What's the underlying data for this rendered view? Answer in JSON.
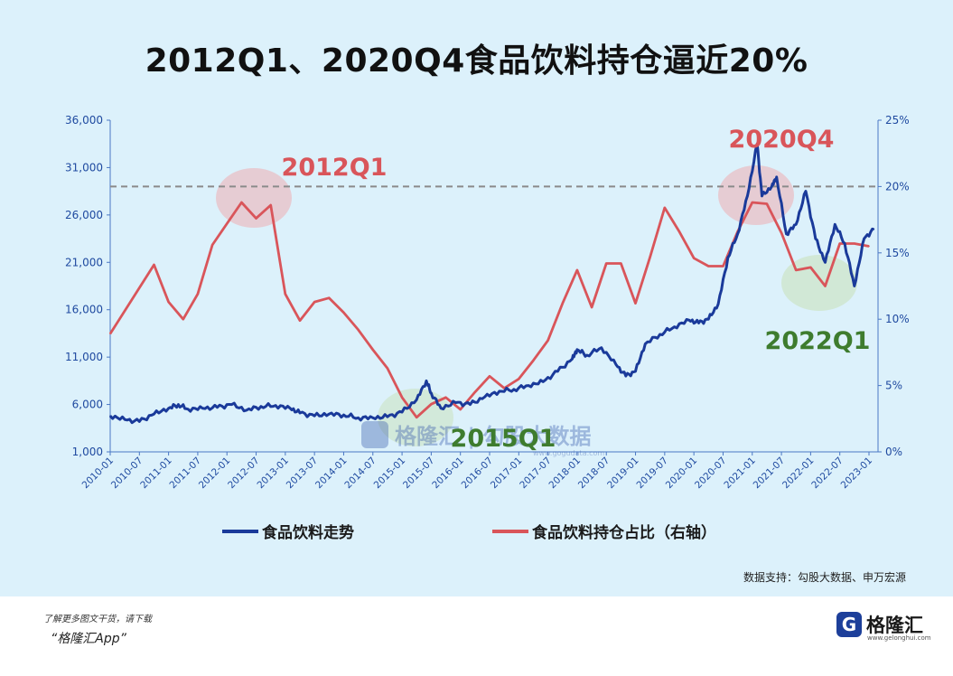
{
  "header": {
    "title": "2012Q1、2020Q4食品饮料持仓逼近20%"
  },
  "chart_data": {
    "type": "line",
    "title": "2012Q1、2020Q4食品饮料持仓逼近20%",
    "x_tick_labels": [
      "2010-01",
      "2010-07",
      "2011-01",
      "2011-07",
      "2012-01",
      "2012-07",
      "2013-01",
      "2013-07",
      "2014-01",
      "2014-07",
      "2015-01",
      "2015-07",
      "2016-01",
      "2016-07",
      "2017-01",
      "2017-07",
      "2018-01",
      "2018-07",
      "2019-01",
      "2019-07",
      "2020-01",
      "2020-07",
      "2021-01",
      "2021-07",
      "2022-01",
      "2022-07",
      "2023-01"
    ],
    "y_left": {
      "ticks": [
        "1,000",
        "6,000",
        "11,000",
        "16,000",
        "21,000",
        "26,000",
        "31,000",
        "36,000"
      ],
      "range": [
        1000,
        36000
      ]
    },
    "y_right": {
      "ticks": [
        "0%",
        "5%",
        "10%",
        "15%",
        "20%",
        "25%"
      ],
      "range": [
        0,
        25
      ]
    },
    "grid": false,
    "reference_line": {
      "axis": "right",
      "value": 20,
      "style": "dashed"
    },
    "series": [
      {
        "name": "食品饮料走势",
        "axis": "left",
        "color": "#1a3a9a",
        "points": [
          [
            "2010-01",
            4800
          ],
          [
            "2010-04",
            4400
          ],
          [
            "2010-07",
            4200
          ],
          [
            "2010-10",
            5000
          ],
          [
            "2011-01",
            5600
          ],
          [
            "2011-03",
            6000
          ],
          [
            "2011-05",
            5500
          ],
          [
            "2011-08",
            5600
          ],
          [
            "2011-11",
            5700
          ],
          [
            "2012-02",
            6000
          ],
          [
            "2012-05",
            5400
          ],
          [
            "2012-08",
            5800
          ],
          [
            "2012-11",
            5900
          ],
          [
            "2013-02",
            5600
          ],
          [
            "2013-04",
            5100
          ],
          [
            "2013-07",
            4800
          ],
          [
            "2013-10",
            5000
          ],
          [
            "2014-01",
            4900
          ],
          [
            "2014-04",
            4600
          ],
          [
            "2014-07",
            4600
          ],
          [
            "2014-10",
            4700
          ],
          [
            "2015-01",
            5200
          ],
          [
            "2015-04",
            6500
          ],
          [
            "2015-06",
            8500
          ],
          [
            "2015-07",
            7200
          ],
          [
            "2015-09",
            5600
          ],
          [
            "2015-12",
            6200
          ],
          [
            "2016-03",
            6000
          ],
          [
            "2016-06",
            6800
          ],
          [
            "2016-09",
            7400
          ],
          [
            "2016-12",
            7600
          ],
          [
            "2017-03",
            8000
          ],
          [
            "2017-06",
            8400
          ],
          [
            "2017-09",
            9500
          ],
          [
            "2017-12",
            10800
          ],
          [
            "2018-01",
            11800
          ],
          [
            "2018-03",
            11200
          ],
          [
            "2018-06",
            12000
          ],
          [
            "2018-09",
            10200
          ],
          [
            "2018-11",
            9000
          ],
          [
            "2019-01",
            9500
          ],
          [
            "2019-03",
            12400
          ],
          [
            "2019-06",
            13400
          ],
          [
            "2019-09",
            14200
          ],
          [
            "2019-12",
            14900
          ],
          [
            "2020-02",
            14600
          ],
          [
            "2020-04",
            15000
          ],
          [
            "2020-06",
            16600
          ],
          [
            "2020-08",
            21500
          ],
          [
            "2020-10",
            24000
          ],
          [
            "2020-12",
            28000
          ],
          [
            "2021-02",
            33500
          ],
          [
            "2021-03",
            28000
          ],
          [
            "2021-05",
            29000
          ],
          [
            "2021-06",
            30000
          ],
          [
            "2021-08",
            24000
          ],
          [
            "2021-10",
            25000
          ],
          [
            "2021-12",
            28500
          ],
          [
            "2022-02",
            23500
          ],
          [
            "2022-04",
            21000
          ],
          [
            "2022-06",
            25000
          ],
          [
            "2022-08",
            23000
          ],
          [
            "2022-10",
            18500
          ],
          [
            "2022-12",
            23500
          ],
          [
            "2023-02",
            24500
          ]
        ]
      },
      {
        "name": "食品饮料持仓占比（右轴）",
        "axis": "right",
        "color": "#d9555a",
        "points": [
          [
            "2010-01",
            8.9
          ],
          [
            "2010-10",
            14.1
          ],
          [
            "2011-01",
            11.3
          ],
          [
            "2011-04",
            10.0
          ],
          [
            "2011-07",
            11.9
          ],
          [
            "2011-10",
            15.6
          ],
          [
            "2012-01",
            17.2
          ],
          [
            "2012-04",
            18.8
          ],
          [
            "2012-07",
            17.6
          ],
          [
            "2012-10",
            18.6
          ],
          [
            "2013-01",
            11.9
          ],
          [
            "2013-04",
            9.9
          ],
          [
            "2013-07",
            11.3
          ],
          [
            "2013-10",
            11.6
          ],
          [
            "2014-01",
            10.5
          ],
          [
            "2014-04",
            9.2
          ],
          [
            "2014-07",
            7.7
          ],
          [
            "2014-10",
            6.3
          ],
          [
            "2015-01",
            4.1
          ],
          [
            "2015-04",
            2.6
          ],
          [
            "2015-07",
            3.6
          ],
          [
            "2015-10",
            4.1
          ],
          [
            "2016-01",
            3.2
          ],
          [
            "2016-04",
            4.5
          ],
          [
            "2016-07",
            5.7
          ],
          [
            "2016-10",
            4.8
          ],
          [
            "2017-01",
            5.5
          ],
          [
            "2017-04",
            6.9
          ],
          [
            "2017-07",
            8.4
          ],
          [
            "2017-10",
            11.2
          ],
          [
            "2018-01",
            13.7
          ],
          [
            "2018-04",
            10.9
          ],
          [
            "2018-07",
            14.2
          ],
          [
            "2018-10",
            14.2
          ],
          [
            "2019-01",
            11.2
          ],
          [
            "2019-04",
            14.7
          ],
          [
            "2019-07",
            18.4
          ],
          [
            "2019-10",
            16.6
          ],
          [
            "2020-01",
            14.6
          ],
          [
            "2020-04",
            14.0
          ],
          [
            "2020-07",
            14.0
          ],
          [
            "2020-10",
            16.6
          ],
          [
            "2021-01",
            18.8
          ],
          [
            "2021-04",
            18.7
          ],
          [
            "2021-07",
            16.5
          ],
          [
            "2021-10",
            13.7
          ],
          [
            "2022-01",
            13.9
          ],
          [
            "2022-04",
            12.5
          ],
          [
            "2022-07",
            15.7
          ],
          [
            "2022-10",
            15.7
          ],
          [
            "2023-01",
            15.5
          ]
        ]
      }
    ],
    "annotations": [
      {
        "text": "2012Q1",
        "color": "#d9555a"
      },
      {
        "text": "2020Q4",
        "color": "#d9555a"
      },
      {
        "text": "2015Q1",
        "color": "#3e7c2e"
      },
      {
        "text": "2022Q1",
        "color": "#3e7c2e"
      }
    ]
  },
  "legend": [
    {
      "label": "食品饮料走势",
      "color": "#1a3a9a"
    },
    {
      "label": "食品饮料持仓占比（右轴）",
      "color": "#d9555a"
    }
  ],
  "watermark": {
    "text": "格隆汇 | 勾股大数据",
    "url": "www.gogudata.com"
  },
  "footer": {
    "source": "数据支持：勾股大数据、申万宏源",
    "promo_line1": "了解更多图文干货，请下载",
    "promo_line2": "“格隆汇App”",
    "brand_mark": "G",
    "brand_name": "格隆汇",
    "brand_url": "www.gelonghui.com"
  }
}
